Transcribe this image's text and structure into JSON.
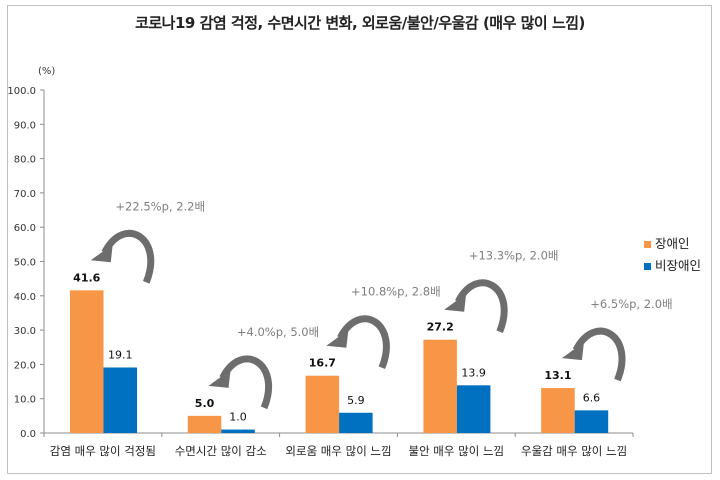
{
  "chart_data": {
    "type": "bar",
    "title": "코로나19 감염 걱정, 수면시간 변화, 외로움/불안/우울감 (매우 많이 느낌)",
    "ylabel": "(%)",
    "xlabel": "",
    "ylim": [
      0,
      100
    ],
    "yticks": [
      "0.0",
      "10.0",
      "20.0",
      "30.0",
      "40.0",
      "50.0",
      "60.0",
      "70.0",
      "80.0",
      "90.0",
      "100.0"
    ],
    "categories": [
      "감염 매우 많이 걱정됨",
      "수면시간 많이 감소",
      "외로움 매우 많이 느낌",
      "불안 매우 많이 느낌",
      "우울감 매우 많이 느낌"
    ],
    "series": [
      {
        "name": "장애인",
        "color": "#f79646",
        "values": [
          41.6,
          5.0,
          16.7,
          27.2,
          13.1
        ],
        "labels": [
          "41.6",
          "5.0",
          "16.7",
          "27.2",
          "13.1"
        ]
      },
      {
        "name": "비장애인",
        "color": "#0070c0",
        "values": [
          19.1,
          1.0,
          5.9,
          13.9,
          6.6
        ],
        "labels": [
          "19.1",
          "1.0",
          "5.9",
          "13.9",
          "6.6"
        ]
      }
    ],
    "annotations": [
      "+22.5%p, 2.2배",
      "+4.0%p, 5.0배",
      "+10.8%p, 2.8배",
      "+13.3%p, 2.0배",
      "+6.5%p, 2.0배"
    ],
    "legend_position": "right",
    "grid": false
  },
  "colors": {
    "arrow": "#6d6d6d",
    "axis": "#8c8c8c"
  }
}
